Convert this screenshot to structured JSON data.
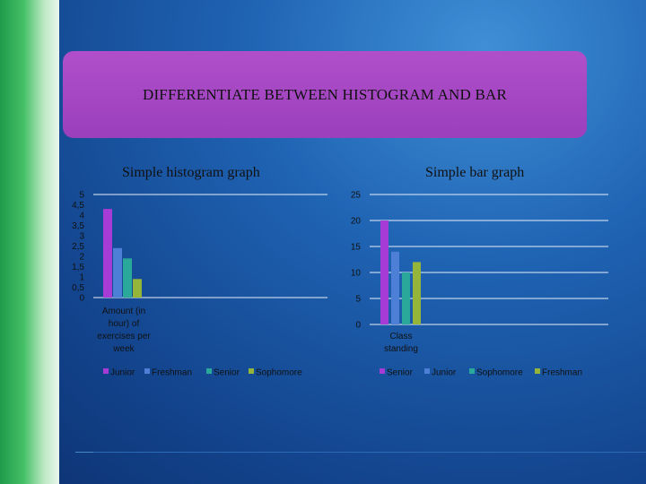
{
  "slide": {
    "title": "DIFFERENTIATE BETWEEN HISTOGRAM AND BAR"
  },
  "colors": {
    "purple": "#a63bd6",
    "blue": "#4e7fd6",
    "teal": "#2aa89a",
    "olive": "#95b43a"
  },
  "chart_data": [
    {
      "type": "bar",
      "title": "Simple histogram graph",
      "xlabel": "Amount (in hour) of exercises per week",
      "ylabel": "",
      "ylim": [
        0,
        5
      ],
      "yticks": [
        "5",
        "4,5",
        "4",
        "3,5",
        "3",
        "2,5",
        "2",
        "1,5",
        "1",
        "0,5",
        "0"
      ],
      "grid": false,
      "legend": "bottom",
      "series": [
        {
          "name": "Junior",
          "color": "#a63bd6",
          "values": [
            4.3
          ]
        },
        {
          "name": "Freshman",
          "color": "#4e7fd6",
          "values": [
            2.4
          ]
        },
        {
          "name": "Senior",
          "color": "#2aa89a",
          "values": [
            1.9
          ]
        },
        {
          "name": "Sophomore",
          "color": "#95b43a",
          "values": [
            0.9
          ]
        }
      ]
    },
    {
      "type": "bar",
      "title": "Simple bar graph",
      "xlabel": "Class standing",
      "ylabel": "",
      "ylim": [
        0,
        25
      ],
      "yticks": [
        "25",
        "20",
        "15",
        "10",
        "5",
        "0"
      ],
      "grid": true,
      "legend": "bottom",
      "series": [
        {
          "name": "Senior",
          "color": "#a63bd6",
          "values": [
            20
          ]
        },
        {
          "name": "Junior",
          "color": "#4e7fd6",
          "values": [
            14
          ]
        },
        {
          "name": "Sophomore",
          "color": "#2aa89a",
          "values": [
            10
          ]
        },
        {
          "name": "Freshman",
          "color": "#95b43a",
          "values": [
            12
          ]
        }
      ]
    }
  ]
}
